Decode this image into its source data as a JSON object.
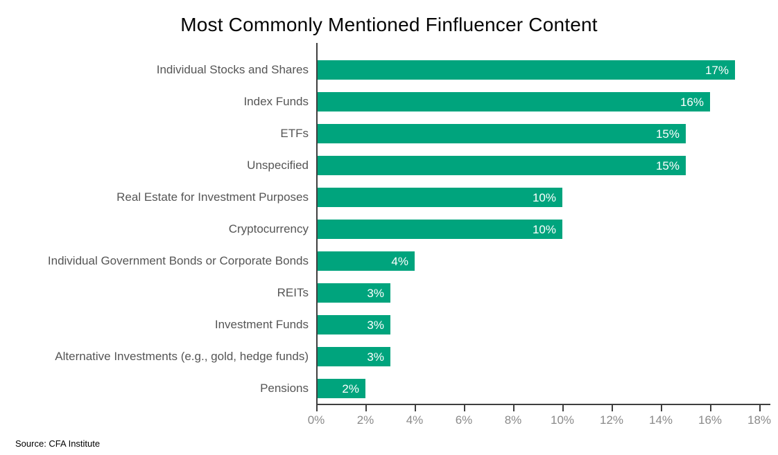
{
  "chart_data": {
    "type": "bar",
    "orientation": "horizontal",
    "title": "Most Commonly Mentioned Finfluencer Content",
    "categories": [
      "Individual Stocks and Shares",
      "Index Funds",
      "ETFs",
      "Unspecified",
      "Real Estate for Investment Purposes",
      "Cryptocurrency",
      "Individual Government Bonds or Corporate Bonds",
      "REITs",
      "Investment Funds",
      "Alternative Investments (e.g., gold, hedge funds)",
      "Pensions"
    ],
    "values": [
      17,
      16,
      15,
      15,
      10,
      10,
      4,
      3,
      3,
      3,
      2
    ],
    "value_suffix": "%",
    "value_labels": [
      "17%",
      "16%",
      "15%",
      "15%",
      "10%",
      "10%",
      "4%",
      "3%",
      "3%",
      "3%",
      "2%"
    ],
    "xlabel": "",
    "ylabel": "",
    "xlim": [
      0,
      18
    ],
    "x_tick_labels": [
      "0%",
      "2%",
      "4%",
      "6%",
      "8%",
      "10%",
      "12%",
      "14%",
      "16%",
      "18%"
    ],
    "x_tick_values": [
      0,
      2,
      4,
      6,
      8,
      10,
      12,
      14,
      16,
      18
    ],
    "grid": "off",
    "legend": "none",
    "bar_color": "#00A47D",
    "value_label_color": "#ffffff",
    "category_label_color": "#555555",
    "tick_label_color": "#8a8a8a",
    "axis_line_color": "#3e3e3e",
    "source": "Source: CFA Institute"
  }
}
